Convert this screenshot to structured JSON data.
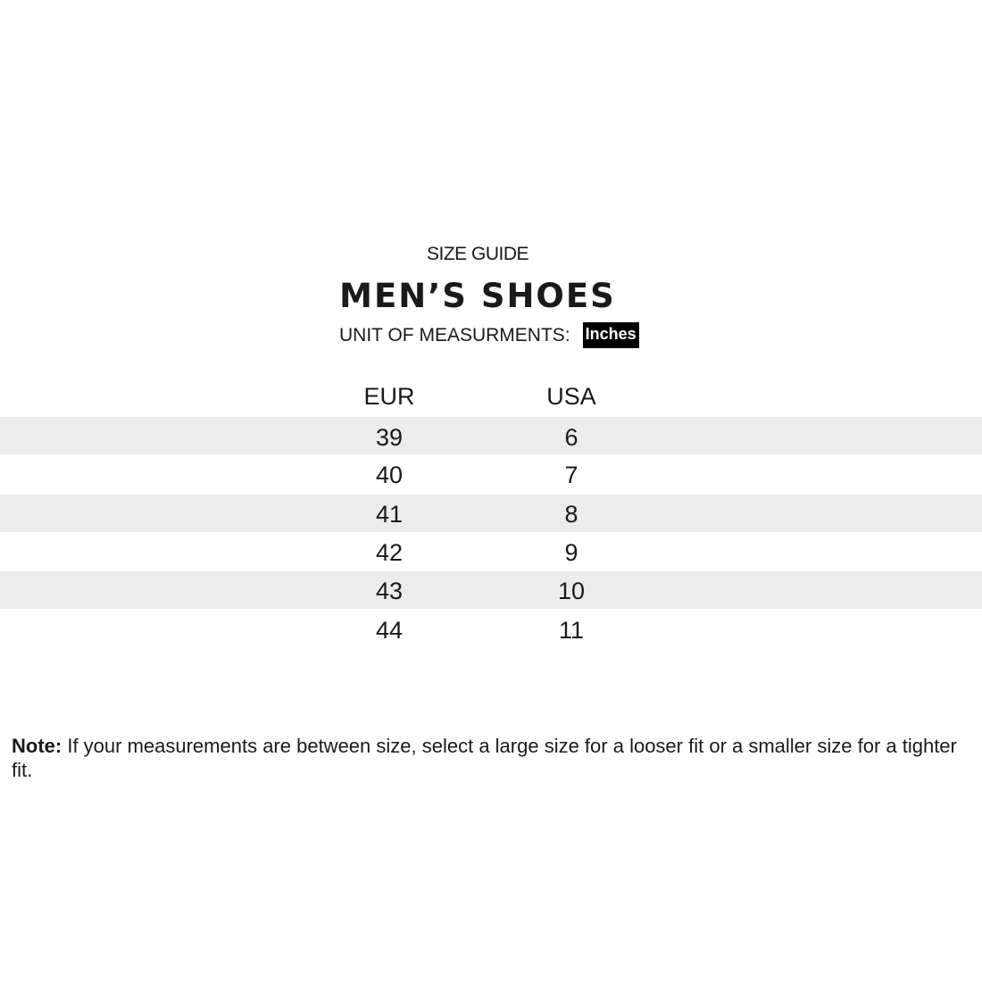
{
  "header": {
    "kicker": "SIZE GUIDE",
    "title": "MEN’S SHOES",
    "unit_label": "UNIT OF MEASURMENTS:",
    "unit_value": "Inches"
  },
  "table": {
    "columns": [
      "EUR",
      "USA"
    ],
    "rows": [
      [
        "39",
        "6"
      ],
      [
        "40",
        "7"
      ],
      [
        "41",
        "8"
      ],
      [
        "42",
        "9"
      ],
      [
        "43",
        "10"
      ],
      [
        "44",
        "11"
      ]
    ]
  },
  "note": {
    "label": "Note:",
    "text": " If your measurements are between size, select a large size for a looser fit or a smaller size for a tighter fit."
  }
}
